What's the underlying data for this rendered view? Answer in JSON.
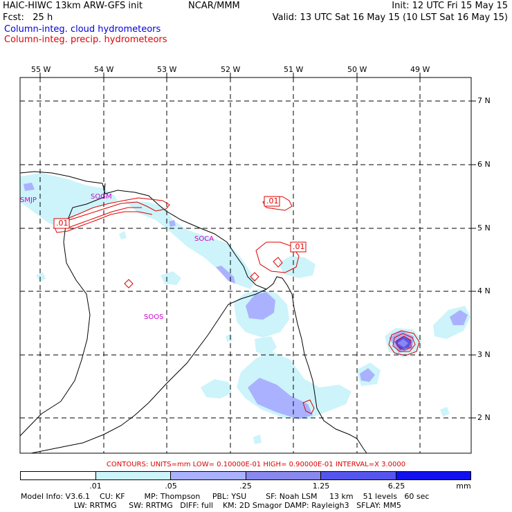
{
  "header": {
    "model_title": "HAIC-HIWC 13km ARW-GFS init",
    "center": "NCAR/MMM",
    "init": "Init: 12 UTC Fri 15 May 15",
    "forecast": "Fcst:   25 h",
    "valid": "Valid: 13 UTC Sat 16 May 15 (10 LST Sat 16 May 15)",
    "legend_cloud": "Column-integ. cloud hydrometeors",
    "legend_precip": "Column-integ. precip. hydrometeors"
  },
  "colors": {
    "cloud_text": "#0000dd",
    "precip_text": "#dd0000",
    "shade_1": "#ccf4fa",
    "shade_2": "#aab2ff",
    "shade_3": "#8888ee",
    "shade_4": "#5555ee",
    "shade_5": "#1111ee",
    "label_magenta": "#cc00cc"
  },
  "map": {
    "lon_labels": [
      "55 W",
      "54 W",
      "53 W",
      "52 W",
      "51 W",
      "50 W",
      "49 W"
    ],
    "lat_labels": [
      "7 N",
      "6 N",
      "5 N",
      "4 N",
      "3 N",
      "2 N"
    ],
    "stations": [
      "SMJP",
      "SOGM",
      "SOCA",
      "SOOS"
    ],
    "contour_labels": [
      ".01",
      ".01",
      ".01"
    ]
  },
  "contours_line": "CONTOURS:  UNITS=mm  LOW= 0.10000E-01  HIGH= 0.90000E-01  INTERVAL=X  3.0000",
  "scale": {
    "labels": [
      ".01",
      ".05",
      ".25",
      "1.25",
      "6.25"
    ],
    "unit": "mm"
  },
  "model_info": {
    "line1": "Model Info: V3.6.1    CU: KF        MP: Thompson     PBL: YSU        SF: Noah LSM     13 km    51 levels   60 sec",
    "line2": "                      LW: RRTMG     SW: RRTMG   DIFF: full    KM: 2D Smagor DAMP: Rayleigh3   SFLAY: MM5"
  }
}
